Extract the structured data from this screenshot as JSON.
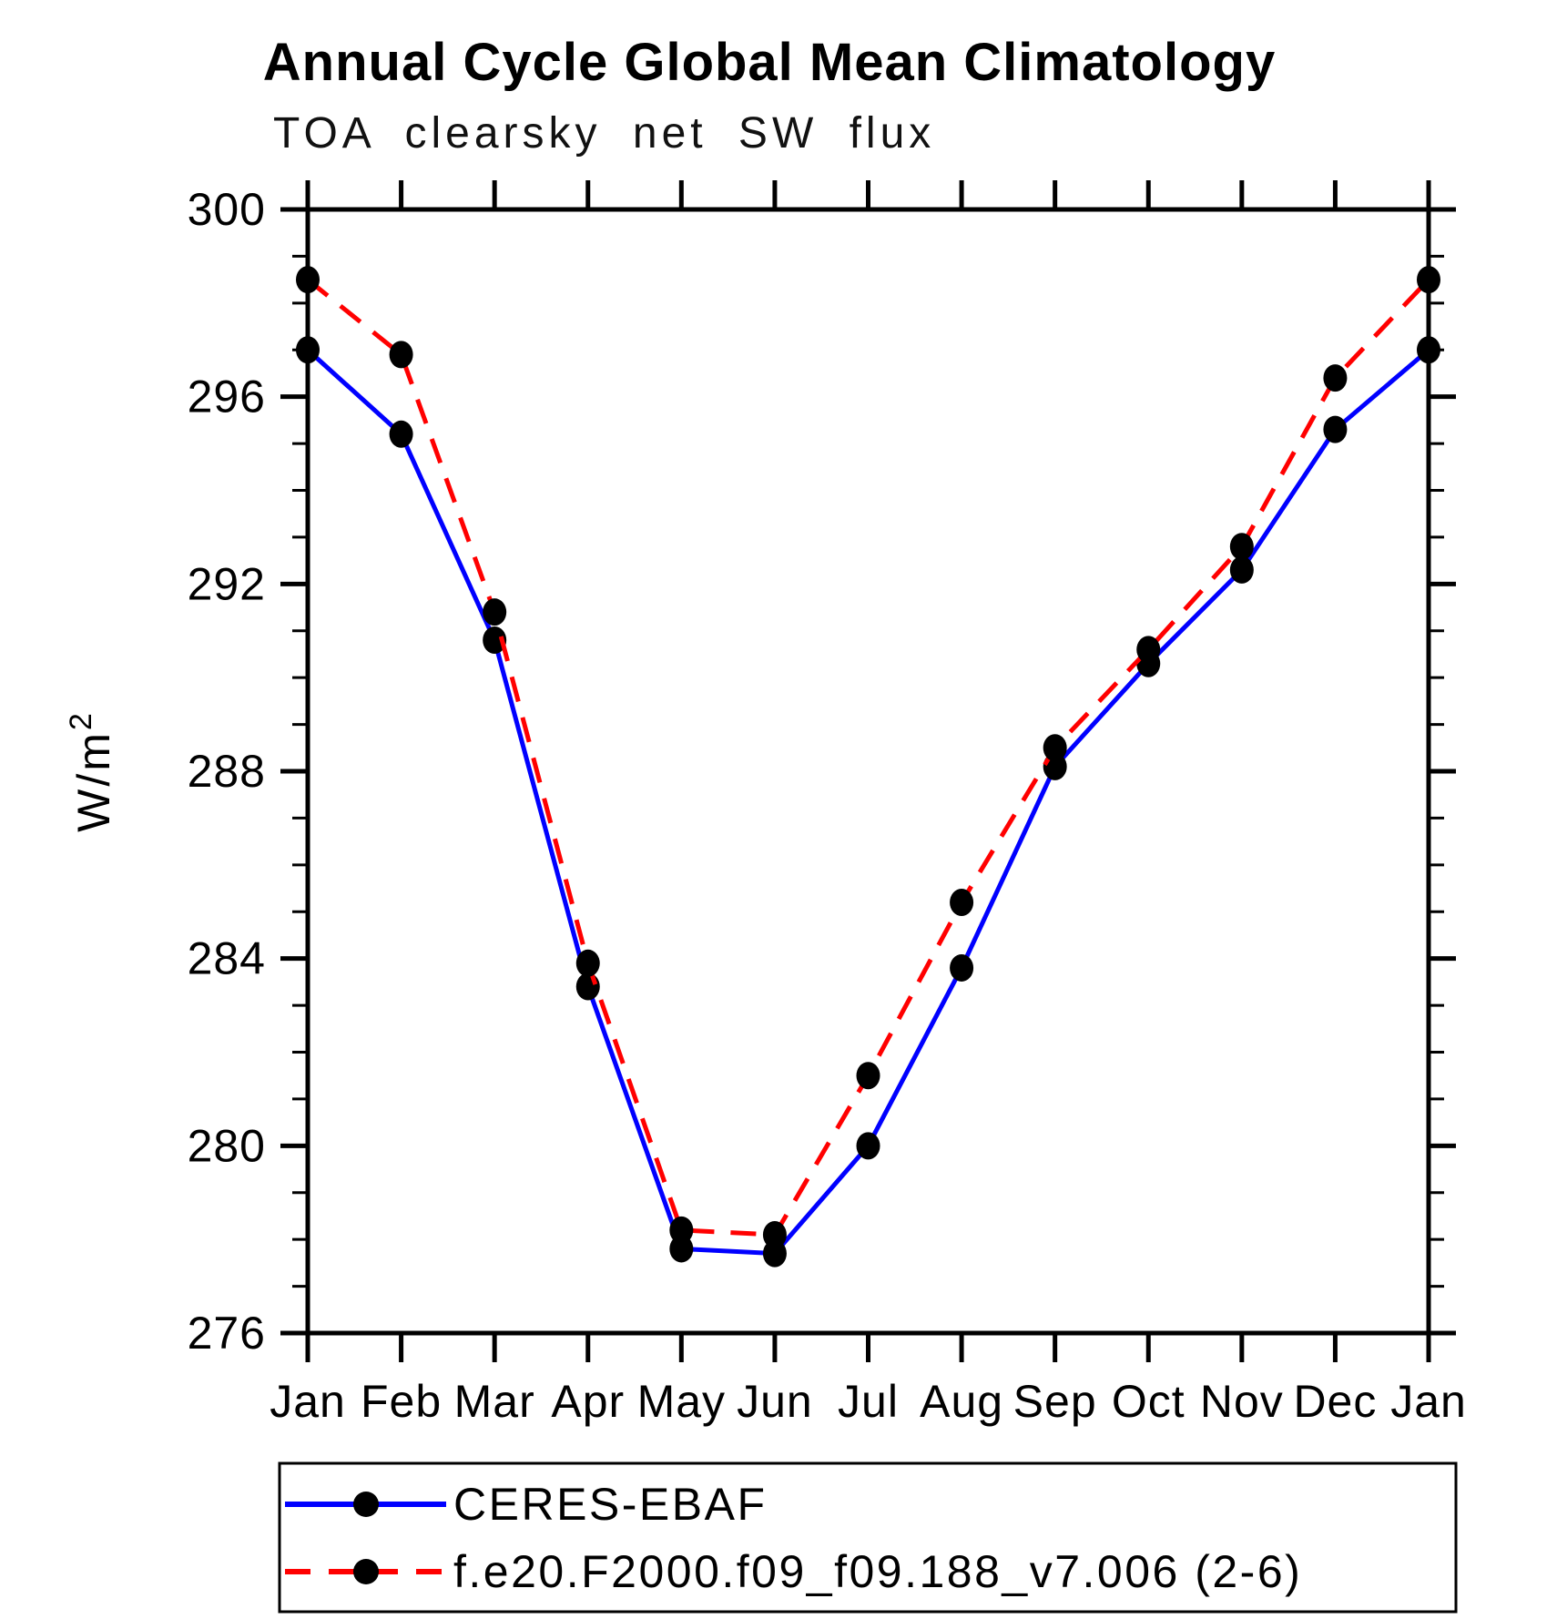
{
  "title": "Annual Cycle Global Mean Climatology",
  "subtitle": "TOA clearsky net SW flux",
  "chart_data": {
    "type": "line",
    "title": "Annual Cycle Global Mean Climatology",
    "subtitle": "TOA clearsky net SW flux",
    "xlabel": "",
    "ylabel_base": "W/m",
    "ylabel_exp": "2",
    "categories": [
      "Jan",
      "Feb",
      "Mar",
      "Apr",
      "May",
      "Jun",
      "Jul",
      "Aug",
      "Sep",
      "Oct",
      "Nov",
      "Dec",
      "Jan"
    ],
    "series": [
      {
        "name": "CERES-EBAF",
        "color": "#0000ff",
        "style": "solid",
        "marker": "filled-circle",
        "marker_color": "#000000",
        "values": [
          297.0,
          295.2,
          290.8,
          283.4,
          277.8,
          277.7,
          280.0,
          283.8,
          288.1,
          290.3,
          292.3,
          295.3,
          297.0
        ]
      },
      {
        "name": "f.e20.F2000.f09_f09.188_v7.006 (2-6)",
        "color": "#ff0000",
        "style": "dashed",
        "marker": "filled-circle",
        "marker_color": "#000000",
        "values": [
          298.5,
          296.9,
          291.4,
          283.9,
          278.2,
          278.1,
          281.5,
          285.2,
          288.5,
          290.6,
          292.8,
          296.4,
          298.5
        ]
      }
    ],
    "ylim": [
      276,
      300
    ],
    "ytick_major": [
      276,
      280,
      284,
      288,
      292,
      296,
      300
    ],
    "ytick_minor_step": 1,
    "grid": "off",
    "frame": "box",
    "axis_color": "#000000",
    "legend_position": "bottom-left-box"
  }
}
